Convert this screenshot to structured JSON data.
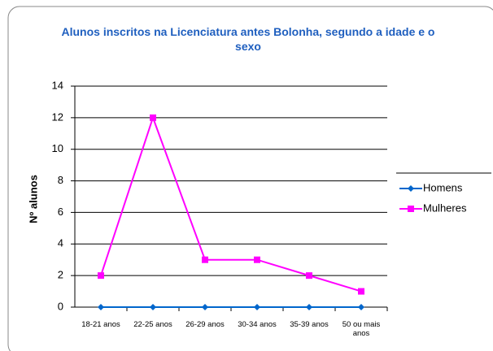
{
  "chart_data": {
    "type": "line",
    "title": "Alunos inscritos na Licenciatura antes Bolonha, segundo a idade e o sexo",
    "y_label": "Nº alunos",
    "categories": [
      "18-21 anos",
      "22-25 anos",
      "26-29 anos",
      "30-34 anos",
      "35-39 anos",
      "50 ou mais anos"
    ],
    "series": [
      {
        "name": "Homens",
        "color": "#0066cc",
        "marker": "diamond",
        "values": [
          0,
          0,
          0,
          0,
          0,
          0
        ]
      },
      {
        "name": "Mulheres",
        "color": "#ff00ff",
        "marker": "square",
        "values": [
          2,
          12,
          3,
          3,
          2,
          1
        ]
      }
    ],
    "ylim": [
      0,
      14
    ],
    "yticks": [
      0,
      2,
      4,
      6,
      8,
      10,
      12,
      14
    ],
    "grid": true,
    "legend": "right"
  }
}
